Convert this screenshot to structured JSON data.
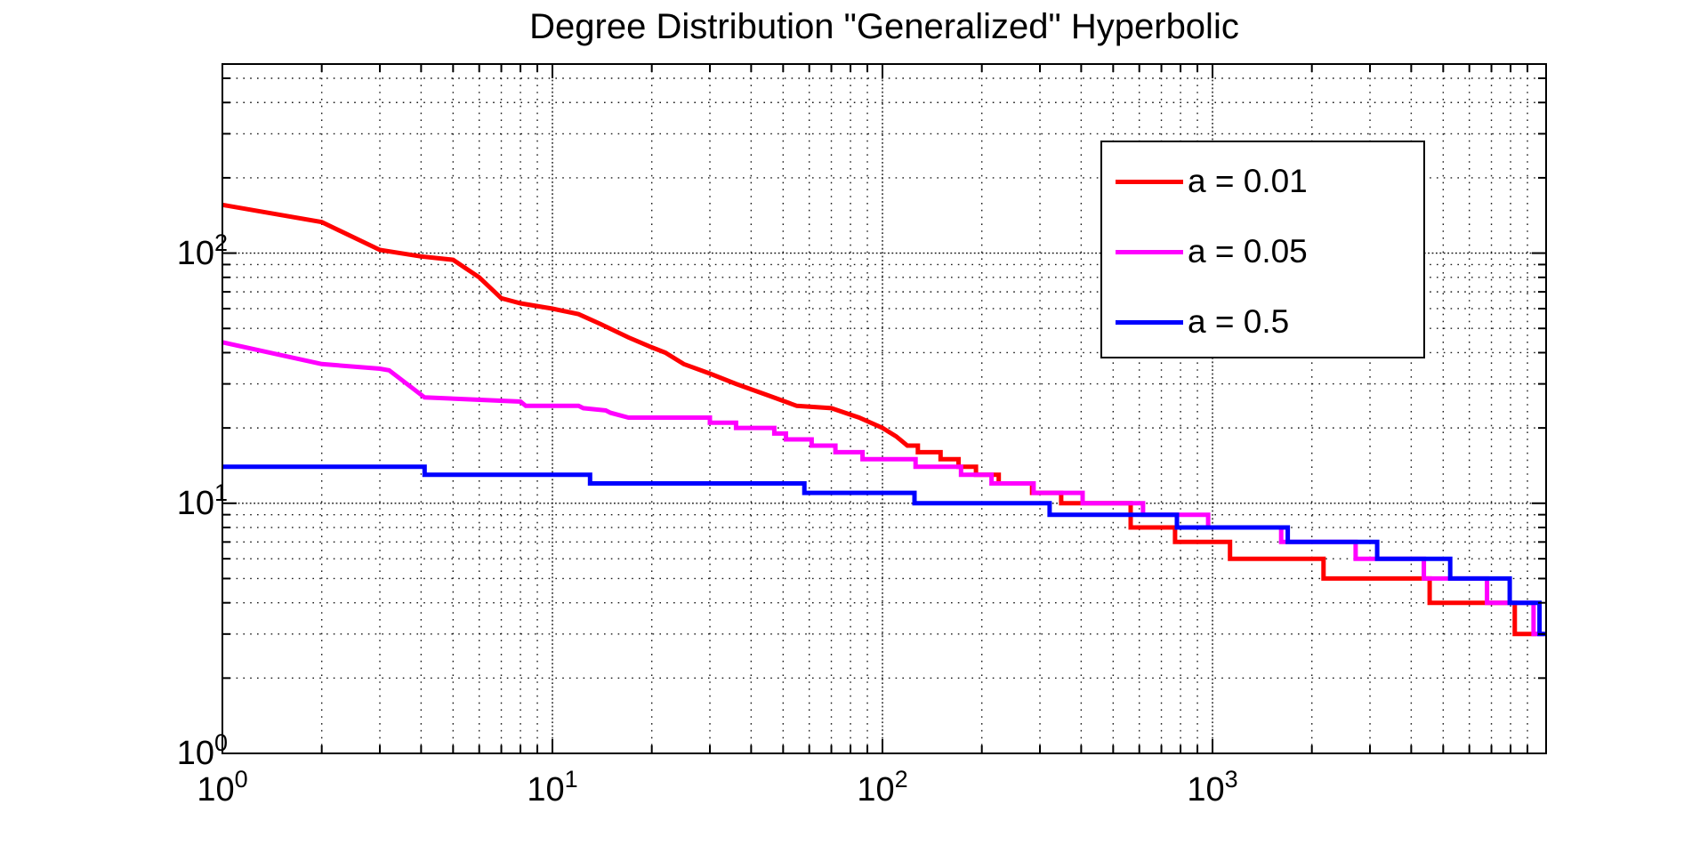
{
  "title": "Degree Distribution \"Generalized\" Hyperbolic",
  "chart_data": {
    "type": "line",
    "title": "Degree Distribution \"Generalized\" Hyperbolic",
    "x_scale": "log",
    "y_scale": "log",
    "xlim": [
      1,
      10250
    ],
    "ylim": [
      1,
      570
    ],
    "grid": true,
    "minor_grid": true,
    "legend_position": "upper right",
    "grid_color": "#000000",
    "axis_color": "#000000",
    "background_color": "#ffffff",
    "x_ticks": [
      {
        "value": 1,
        "base": "10",
        "exp": "0"
      },
      {
        "value": 10,
        "base": "10",
        "exp": "1"
      },
      {
        "value": 100,
        "base": "10",
        "exp": "2"
      },
      {
        "value": 1000,
        "base": "10",
        "exp": "3"
      }
    ],
    "y_ticks": [
      {
        "value": 1,
        "base": "10",
        "exp": "0"
      },
      {
        "value": 10,
        "base": "10",
        "exp": "1"
      },
      {
        "value": 100,
        "base": "10",
        "exp": "2"
      }
    ],
    "legend": [
      {
        "label": "a = 0.01",
        "color": "#ff0000"
      },
      {
        "label": "a = 0.05",
        "color": "#ff00ff"
      },
      {
        "label": "a = 0.5",
        "color": "#0000ff"
      }
    ],
    "series": [
      {
        "name": "a = 0.01",
        "color": "#ff0000",
        "points": [
          [
            1,
            156
          ],
          [
            2,
            133
          ],
          [
            3,
            103
          ],
          [
            4,
            97
          ],
          [
            5,
            94
          ],
          [
            6,
            80
          ],
          [
            7,
            66
          ],
          [
            8,
            63
          ],
          [
            10,
            60
          ],
          [
            12,
            57
          ],
          [
            14,
            52
          ],
          [
            17,
            46
          ],
          [
            20,
            42
          ],
          [
            22,
            40
          ],
          [
            25,
            36
          ],
          [
            30,
            33
          ],
          [
            36,
            30
          ],
          [
            45,
            27
          ],
          [
            55,
            24.5
          ],
          [
            70,
            24
          ],
          [
            85,
            22
          ],
          [
            100,
            20
          ],
          [
            110,
            18.5
          ],
          [
            119,
            17
          ],
          [
            128,
            17
          ],
          [
            128,
            16
          ],
          [
            150,
            16
          ],
          [
            150,
            15
          ],
          [
            170,
            15
          ],
          [
            170,
            14
          ],
          [
            192,
            14
          ],
          [
            192,
            13
          ],
          [
            225,
            13
          ],
          [
            225,
            12
          ],
          [
            284,
            12
          ],
          [
            284,
            11
          ],
          [
            348,
            11
          ],
          [
            348,
            10
          ],
          [
            565,
            10
          ],
          [
            565,
            8
          ],
          [
            770,
            8
          ],
          [
            770,
            7
          ],
          [
            1130,
            7
          ],
          [
            1130,
            6
          ],
          [
            2170,
            6
          ],
          [
            2170,
            5
          ],
          [
            4550,
            5
          ],
          [
            4550,
            4
          ],
          [
            8240,
            4
          ],
          [
            8240,
            3
          ],
          [
            9600,
            3
          ]
        ]
      },
      {
        "name": "a = 0.05",
        "color": "#ff00ff",
        "points": [
          [
            1,
            44
          ],
          [
            2,
            36
          ],
          [
            3,
            34.5
          ],
          [
            3.2,
            34
          ],
          [
            4.1,
            26.5
          ],
          [
            8,
            25.5
          ],
          [
            8.3,
            24.5
          ],
          [
            12,
            24.5
          ],
          [
            12.4,
            24
          ],
          [
            14.5,
            23.5
          ],
          [
            15,
            23
          ],
          [
            17,
            22
          ],
          [
            30,
            22
          ],
          [
            30,
            21
          ],
          [
            36,
            21
          ],
          [
            36,
            20
          ],
          [
            47,
            20
          ],
          [
            47,
            19
          ],
          [
            51,
            19
          ],
          [
            51,
            18
          ],
          [
            61,
            18
          ],
          [
            61,
            17
          ],
          [
            72,
            17
          ],
          [
            72,
            16
          ],
          [
            87,
            16
          ],
          [
            87,
            15
          ],
          [
            126,
            15
          ],
          [
            126,
            14
          ],
          [
            173,
            14
          ],
          [
            173,
            13
          ],
          [
            214,
            13
          ],
          [
            214,
            12
          ],
          [
            287,
            12
          ],
          [
            287,
            11
          ],
          [
            404,
            11
          ],
          [
            404,
            10
          ],
          [
            616,
            10
          ],
          [
            616,
            9
          ],
          [
            970,
            9
          ],
          [
            970,
            8
          ],
          [
            1615,
            8
          ],
          [
            1615,
            7
          ],
          [
            2715,
            7
          ],
          [
            2715,
            6
          ],
          [
            4370,
            6
          ],
          [
            4370,
            5
          ],
          [
            6790,
            5
          ],
          [
            6790,
            4
          ],
          [
            9390,
            4
          ],
          [
            9390,
            3
          ],
          [
            10100,
            3
          ]
        ]
      },
      {
        "name": "a = 0.5",
        "color": "#0000ff",
        "points": [
          [
            1,
            14
          ],
          [
            4.1,
            14
          ],
          [
            4.1,
            13
          ],
          [
            13,
            13
          ],
          [
            13,
            12
          ],
          [
            58,
            12
          ],
          [
            58,
            11
          ],
          [
            125,
            11
          ],
          [
            125,
            10
          ],
          [
            321,
            10
          ],
          [
            321,
            9
          ],
          [
            780,
            9
          ],
          [
            780,
            8
          ],
          [
            1690,
            8
          ],
          [
            1690,
            7
          ],
          [
            3155,
            7
          ],
          [
            3155,
            6
          ],
          [
            5250,
            6
          ],
          [
            5250,
            5
          ],
          [
            7950,
            5
          ],
          [
            7950,
            4
          ],
          [
            9790,
            4
          ],
          [
            9790,
            3
          ],
          [
            10250,
            3
          ]
        ]
      }
    ]
  }
}
